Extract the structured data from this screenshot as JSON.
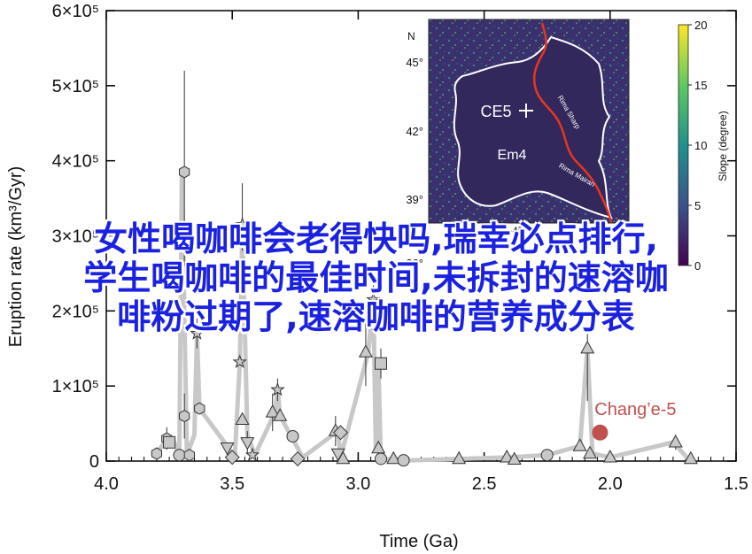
{
  "overlay_title": {
    "line1": "女性喝咖啡会老得快吗,瑞幸必点排行,",
    "line2": "学生喝咖啡的最佳时间,未拆封的速溶咖",
    "line3": "啡粉过期了,速溶咖啡的营养成分表"
  },
  "chart_data": {
    "type": "scatter",
    "xlabel": "Time (Ga)",
    "ylabel": "Eruption rate (km³/Gyr)",
    "xlim": [
      4.0,
      1.5
    ],
    "ylim": [
      0,
      600000
    ],
    "x_ticks": [
      {
        "v": 4.0,
        "t": "4.0"
      },
      {
        "v": 3.5,
        "t": "3.5"
      },
      {
        "v": 3.0,
        "t": "3.0"
      },
      {
        "v": 2.5,
        "t": "2.5"
      },
      {
        "v": 2.0,
        "t": "2.0"
      },
      {
        "v": 1.5,
        "t": "1.5"
      }
    ],
    "y_ticks": [
      {
        "v": 0,
        "t": "0"
      },
      {
        "v": 100000,
        "t": "1×10⁵"
      },
      {
        "v": 200000,
        "t": "2×10⁵"
      },
      {
        "v": 300000,
        "t": "3×10⁵"
      },
      {
        "v": 400000,
        "t": "4×10⁵"
      },
      {
        "v": 500000,
        "t": "5×10⁵"
      },
      {
        "v": 600000,
        "t": "6×10⁵"
      }
    ],
    "trend_line": [
      [
        3.8,
        10000
      ],
      [
        3.76,
        30000
      ],
      [
        3.73,
        25000
      ],
      [
        3.71,
        8000
      ],
      [
        3.7,
        385000
      ],
      [
        3.68,
        8000
      ],
      [
        3.65,
        35000
      ],
      [
        3.64,
        170000
      ],
      [
        3.63,
        70000
      ],
      [
        3.52,
        20000
      ],
      [
        3.49,
        5000
      ],
      [
        3.47,
        130000
      ],
      [
        3.46,
        310000
      ],
      [
        3.44,
        35000
      ],
      [
        3.41,
        8000
      ],
      [
        3.33,
        65000
      ],
      [
        3.32,
        95000
      ],
      [
        3.31,
        60000
      ],
      [
        3.22,
        5000
      ],
      [
        3.08,
        40000
      ],
      [
        3.07,
        5000
      ],
      [
        2.96,
        145000
      ],
      [
        2.94,
        215000
      ],
      [
        2.93,
        15000
      ],
      [
        2.92,
        130000
      ],
      [
        2.91,
        3000
      ],
      [
        2.8,
        1000
      ],
      [
        2.6,
        3000
      ],
      [
        2.4,
        5000
      ],
      [
        2.25,
        8000
      ],
      [
        2.12,
        20000
      ],
      [
        2.09,
        150000
      ],
      [
        2.07,
        10000
      ],
      [
        2.0,
        5000
      ],
      [
        1.75,
        25000
      ],
      [
        1.69,
        3000
      ]
    ],
    "points": [
      {
        "x": 3.8,
        "y": 10000,
        "m": "hexagon"
      },
      {
        "x": 3.76,
        "y": 30000,
        "m": "hexagon",
        "err": [
          15000,
          45000
        ]
      },
      {
        "x": 3.75,
        "y": 25000,
        "m": "square"
      },
      {
        "x": 3.71,
        "y": 8000,
        "m": "circle"
      },
      {
        "x": 3.69,
        "y": 385000,
        "m": "hexagon",
        "err": [
          260000,
          520000
        ]
      },
      {
        "x": 3.69,
        "y": 60000,
        "m": "hexagon",
        "err": [
          30000,
          90000
        ]
      },
      {
        "x": 3.67,
        "y": 8000,
        "m": "hexagon"
      },
      {
        "x": 3.64,
        "y": 170000,
        "m": "star",
        "err": [
          150000,
          190000
        ]
      },
      {
        "x": 3.63,
        "y": 70000,
        "m": "hexagon"
      },
      {
        "x": 3.52,
        "y": 18000,
        "m": "triangle-down"
      },
      {
        "x": 3.5,
        "y": 5000,
        "m": "diamond"
      },
      {
        "x": 3.47,
        "y": 132000,
        "m": "star"
      },
      {
        "x": 3.46,
        "y": 315000,
        "m": "star",
        "err": [
          280000,
          370000
        ]
      },
      {
        "x": 3.46,
        "y": 55000,
        "m": "triangle"
      },
      {
        "x": 3.44,
        "y": 25000,
        "m": "triangle-down",
        "err": [
          10000,
          40000
        ]
      },
      {
        "x": 3.42,
        "y": 8000,
        "m": "star"
      },
      {
        "x": 3.34,
        "y": 65000,
        "m": "triangle",
        "err": [
          40000,
          90000
        ]
      },
      {
        "x": 3.32,
        "y": 95000,
        "m": "star",
        "err": [
          80000,
          110000
        ]
      },
      {
        "x": 3.31,
        "y": 60000,
        "m": "triangle"
      },
      {
        "x": 3.26,
        "y": 33000,
        "m": "circle"
      },
      {
        "x": 3.24,
        "y": 3000,
        "m": "diamond"
      },
      {
        "x": 3.09,
        "y": 40000,
        "m": "triangle",
        "err": [
          20000,
          60000
        ]
      },
      {
        "x": 3.07,
        "y": 38000,
        "m": "diamond"
      },
      {
        "x": 3.08,
        "y": 10000,
        "m": "triangle-down"
      },
      {
        "x": 3.06,
        "y": 3000,
        "m": "triangle"
      },
      {
        "x": 2.97,
        "y": 145000,
        "m": "triangle",
        "err": [
          100000,
          190000
        ]
      },
      {
        "x": 2.94,
        "y": 215000,
        "m": "star",
        "err": [
          195000,
          235000
        ]
      },
      {
        "x": 2.92,
        "y": 17000,
        "m": "triangle"
      },
      {
        "x": 2.91,
        "y": 130000,
        "m": "square",
        "err": [
          110000,
          150000
        ]
      },
      {
        "x": 2.91,
        "y": 3000,
        "m": "circle"
      },
      {
        "x": 2.86,
        "y": 3000,
        "m": "triangle"
      },
      {
        "x": 2.82,
        "y": 1000,
        "m": "circle"
      },
      {
        "x": 2.6,
        "y": 3000,
        "m": "triangle"
      },
      {
        "x": 2.41,
        "y": 5000,
        "m": "triangle"
      },
      {
        "x": 2.38,
        "y": 2000,
        "m": "triangle"
      },
      {
        "x": 2.25,
        "y": 8000,
        "m": "circle"
      },
      {
        "x": 2.12,
        "y": 20000,
        "m": "triangle"
      },
      {
        "x": 2.09,
        "y": 150000,
        "m": "triangle",
        "err": [
          80000,
          170000
        ]
      },
      {
        "x": 2.08,
        "y": 10000,
        "m": "triangle"
      },
      {
        "x": 2.0,
        "y": 5000,
        "m": "triangle"
      },
      {
        "x": 1.74,
        "y": 25000,
        "m": "triangle",
        "err": [
          15000,
          35000
        ]
      },
      {
        "x": 1.68,
        "y": 3000,
        "m": "triangle"
      }
    ],
    "highlight": {
      "x": 2.04,
      "y": 38000,
      "label": "Chang’e-5",
      "color": "#c0504d"
    },
    "trend_color": "#c8c8c8",
    "marker_fill": "#c8c8c8",
    "inset_map": {
      "colorbar_label": "Slope (degree)",
      "colorbar_ticks": [
        "20",
        "15",
        "10",
        "5",
        "0"
      ],
      "lat_labels": [
        "45°",
        "42°",
        "39°",
        "36°"
      ],
      "north_label": "N",
      "bottom_label": "-45°",
      "region_labels": [
        "CE5",
        "Em4"
      ],
      "rille_labels": [
        "Rima Sharp",
        "Rima Mairan"
      ],
      "boundary_color": "#ffffff",
      "rille_color": "#e8351f",
      "background_color": "#3b2f6e"
    }
  }
}
